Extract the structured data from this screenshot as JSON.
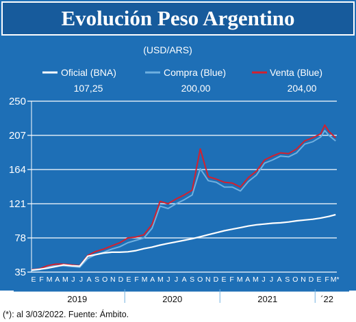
{
  "title": "Evolución Peso Argentino",
  "subtitle": "(USD/ARS)",
  "footnote": "(*): al 3/03/2022.  Fuente: Ámbito.",
  "colors": {
    "background": "#1e6fb6",
    "header": "#175b9c",
    "grid": "#ffffff",
    "oficial": "#ffffff",
    "compra": "#6fb0e0",
    "venta": "#d4202d"
  },
  "legend": [
    {
      "name": "Oficial (BNA)",
      "value": "107,25",
      "color": "#ffffff"
    },
    {
      "name": "Compra (Blue)",
      "value": "200,00",
      "color": "#6fb0e0"
    },
    {
      "name": "Venta (Blue)",
      "value": "204,00",
      "color": "#d4202d"
    }
  ],
  "chart_data": {
    "type": "line",
    "title": "Evolución Peso Argentino",
    "subtitle": "(USD/ARS)",
    "ylim": [
      35,
      250
    ],
    "yticks": [
      35,
      78,
      121,
      164,
      207,
      250
    ],
    "grid": true,
    "legend_position": "top",
    "xlim": [
      0,
      38
    ],
    "month_labels": [
      "E",
      "F",
      "M",
      "A",
      "M",
      "J",
      "J",
      "A",
      "S",
      "O",
      "N",
      "D",
      "E",
      "F",
      "M",
      "A",
      "M",
      "J",
      "J",
      "A",
      "S",
      "O",
      "N",
      "D",
      "E",
      "F",
      "M",
      "A",
      "M",
      "J",
      "J",
      "A",
      "S",
      "O",
      "N",
      "D",
      "E",
      "F",
      "M*"
    ],
    "year_labels": [
      {
        "label": "2019",
        "center": 5.5
      },
      {
        "label": "2020",
        "center": 17.5
      },
      {
        "label": "2021",
        "center": 29.5
      },
      {
        "label": "´22",
        "center": 37
      }
    ],
    "series": [
      {
        "name": "Oficial (BNA)",
        "color": "#ffffff",
        "values": [
          [
            0,
            37.5
          ],
          [
            1,
            38.5
          ],
          [
            2,
            40
          ],
          [
            3,
            42
          ],
          [
            4,
            44
          ],
          [
            5,
            43
          ],
          [
            6,
            42.5
          ],
          [
            7,
            55
          ],
          [
            8,
            57
          ],
          [
            9,
            59
          ],
          [
            10,
            60
          ],
          [
            11,
            60
          ],
          [
            12,
            60.5
          ],
          [
            13,
            62
          ],
          [
            14,
            64.5
          ],
          [
            15,
            66.5
          ],
          [
            16,
            69
          ],
          [
            17,
            71
          ],
          [
            18,
            73
          ],
          [
            19,
            75
          ],
          [
            20,
            77
          ],
          [
            21,
            79.5
          ],
          [
            22,
            82
          ],
          [
            23,
            84.5
          ],
          [
            24,
            87
          ],
          [
            25,
            89
          ],
          [
            26,
            91
          ],
          [
            27,
            93
          ],
          [
            28,
            94.5
          ],
          [
            29,
            95.5
          ],
          [
            30,
            96.5
          ],
          [
            31,
            97
          ],
          [
            32,
            98
          ],
          [
            33,
            99.5
          ],
          [
            34,
            100.5
          ],
          [
            35,
            101.5
          ],
          [
            36,
            103
          ],
          [
            37,
            105
          ],
          [
            37.85,
            107.25
          ]
        ]
      },
      {
        "name": "Compra (Blue)",
        "color": "#6fb0e0",
        "values": [
          [
            0,
            37
          ],
          [
            1,
            38
          ],
          [
            2,
            42
          ],
          [
            3,
            43
          ],
          [
            4,
            43
          ],
          [
            5,
            42
          ],
          [
            6,
            41
          ],
          [
            7,
            52
          ],
          [
            8,
            57
          ],
          [
            9,
            60
          ],
          [
            10,
            64
          ],
          [
            11,
            67
          ],
          [
            12,
            72
          ],
          [
            13,
            75
          ],
          [
            14,
            78
          ],
          [
            15,
            90
          ],
          [
            16,
            118
          ],
          [
            17,
            115
          ],
          [
            18,
            121
          ],
          [
            19,
            126
          ],
          [
            20,
            132
          ],
          [
            21,
            165
          ],
          [
            22,
            150
          ],
          [
            23,
            148
          ],
          [
            24,
            142
          ],
          [
            25,
            142
          ],
          [
            26,
            137
          ],
          [
            27,
            149
          ],
          [
            28,
            157
          ],
          [
            29,
            172
          ],
          [
            30,
            176
          ],
          [
            31,
            181
          ],
          [
            32,
            180
          ],
          [
            33,
            185
          ],
          [
            34,
            196
          ],
          [
            35,
            199
          ],
          [
            36,
            205
          ],
          [
            36.5,
            213
          ],
          [
            37,
            207
          ],
          [
            37.85,
            200
          ]
        ]
      },
      {
        "name": "Venta (Blue)",
        "color": "#d4202d",
        "values": [
          [
            0,
            38
          ],
          [
            1,
            39
          ],
          [
            2,
            43
          ],
          [
            3,
            45
          ],
          [
            4,
            45
          ],
          [
            5,
            44
          ],
          [
            6,
            43
          ],
          [
            7,
            56
          ],
          [
            8,
            61
          ],
          [
            9,
            64
          ],
          [
            10,
            68
          ],
          [
            11,
            72
          ],
          [
            12,
            78
          ],
          [
            13,
            79
          ],
          [
            14,
            82
          ],
          [
            15,
            95
          ],
          [
            16,
            124
          ],
          [
            17,
            121
          ],
          [
            18,
            127
          ],
          [
            19,
            132
          ],
          [
            20,
            138
          ],
          [
            21,
            190
          ],
          [
            22,
            155
          ],
          [
            23,
            152
          ],
          [
            24,
            148
          ],
          [
            25,
            147
          ],
          [
            26,
            142
          ],
          [
            27,
            154
          ],
          [
            28,
            162
          ],
          [
            29,
            176
          ],
          [
            30,
            181
          ],
          [
            31,
            185
          ],
          [
            32,
            184
          ],
          [
            33,
            190
          ],
          [
            34,
            200
          ],
          [
            35,
            204
          ],
          [
            36,
            209
          ],
          [
            36.5,
            220
          ],
          [
            37,
            212
          ],
          [
            37.85,
            204
          ]
        ]
      }
    ]
  }
}
